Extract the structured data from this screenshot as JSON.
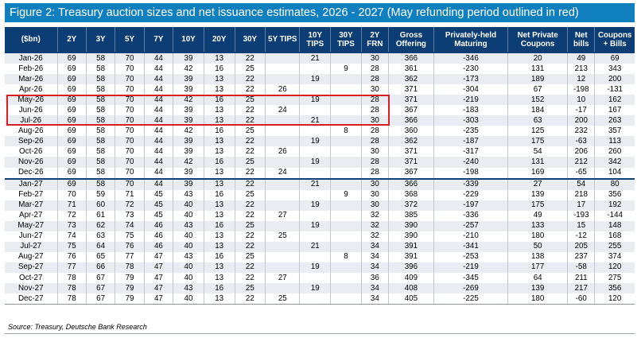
{
  "figure": {
    "title": "Figure 2: Treasury auction sizes and net issuance estimates, 2026 - 2027 (May refunding period outlined in red)",
    "source": "Source: Treasury, Deutsche Bank Research",
    "title_bg_color": "#0f7fbf",
    "header_bg_color": "#0c3d74",
    "highlight_color": "#d61f26"
  },
  "table": {
    "columns": [
      "($bn)",
      "2Y",
      "3Y",
      "5Y",
      "7Y",
      "10Y",
      "20Y",
      "30Y",
      "5Y TIPS",
      "10Y TIPS",
      "30Y TIPS",
      "2Y FRN",
      "Gross Offering",
      "Privately-held Maturing",
      "Net Private Coupons",
      "Net bills",
      "Coupons + Bills"
    ],
    "highlighted_rows": [
      "May-26",
      "Jun-26",
      "Jul-26"
    ],
    "year_start_rows": [
      "Jan-26",
      "Jan-27"
    ],
    "rows": [
      [
        "Jan-26",
        "69",
        "58",
        "70",
        "44",
        "39",
        "13",
        "22",
        "",
        "21",
        "",
        "30",
        "366",
        "-346",
        "20",
        "49",
        "69"
      ],
      [
        "Feb-26",
        "69",
        "58",
        "70",
        "44",
        "42",
        "16",
        "25",
        "",
        "",
        "9",
        "28",
        "361",
        "-230",
        "131",
        "213",
        "343"
      ],
      [
        "Mar-26",
        "69",
        "58",
        "70",
        "44",
        "39",
        "13",
        "22",
        "",
        "19",
        "",
        "28",
        "362",
        "-173",
        "189",
        "12",
        "200"
      ],
      [
        "Apr-26",
        "69",
        "58",
        "70",
        "44",
        "39",
        "13",
        "22",
        "26",
        "",
        "",
        "30",
        "371",
        "-304",
        "67",
        "-198",
        "-131"
      ],
      [
        "May-26",
        "69",
        "58",
        "70",
        "44",
        "42",
        "16",
        "25",
        "",
        "19",
        "",
        "28",
        "371",
        "-219",
        "152",
        "10",
        "162"
      ],
      [
        "Jun-26",
        "69",
        "58",
        "70",
        "44",
        "39",
        "13",
        "22",
        "24",
        "",
        "",
        "28",
        "367",
        "-183",
        "184",
        "-17",
        "167"
      ],
      [
        "Jul-26",
        "69",
        "58",
        "70",
        "44",
        "39",
        "13",
        "22",
        "",
        "21",
        "",
        "30",
        "366",
        "-303",
        "63",
        "200",
        "263"
      ],
      [
        "Aug-26",
        "69",
        "58",
        "70",
        "44",
        "42",
        "16",
        "25",
        "",
        "",
        "8",
        "28",
        "360",
        "-235",
        "125",
        "232",
        "357"
      ],
      [
        "Sep-26",
        "69",
        "58",
        "70",
        "44",
        "39",
        "13",
        "22",
        "",
        "19",
        "",
        "28",
        "362",
        "-187",
        "175",
        "-63",
        "113"
      ],
      [
        "Oct-26",
        "69",
        "58",
        "70",
        "44",
        "39",
        "13",
        "22",
        "26",
        "",
        "",
        "30",
        "371",
        "-317",
        "54",
        "206",
        "260"
      ],
      [
        "Nov-26",
        "69",
        "58",
        "70",
        "44",
        "42",
        "16",
        "25",
        "",
        "19",
        "",
        "28",
        "371",
        "-240",
        "131",
        "212",
        "342"
      ],
      [
        "Dec-26",
        "69",
        "58",
        "70",
        "44",
        "39",
        "13",
        "22",
        "24",
        "",
        "",
        "28",
        "367",
        "-198",
        "169",
        "-65",
        "104"
      ],
      [
        "Jan-27",
        "69",
        "58",
        "70",
        "44",
        "39",
        "13",
        "22",
        "",
        "21",
        "",
        "30",
        "366",
        "-339",
        "27",
        "54",
        "80"
      ],
      [
        "Feb-27",
        "70",
        "59",
        "71",
        "45",
        "43",
        "16",
        "25",
        "",
        "",
        "9",
        "30",
        "368",
        "-229",
        "139",
        "218",
        "356"
      ],
      [
        "Mar-27",
        "71",
        "60",
        "72",
        "45",
        "40",
        "13",
        "22",
        "",
        "19",
        "",
        "30",
        "372",
        "-197",
        "175",
        "17",
        "192"
      ],
      [
        "Apr-27",
        "72",
        "61",
        "73",
        "45",
        "40",
        "13",
        "22",
        "27",
        "",
        "",
        "32",
        "385",
        "-336",
        "49",
        "-193",
        "-144"
      ],
      [
        "May-27",
        "73",
        "62",
        "74",
        "46",
        "43",
        "16",
        "25",
        "",
        "19",
        "",
        "32",
        "390",
        "-257",
        "133",
        "15",
        "148"
      ],
      [
        "Jun-27",
        "74",
        "63",
        "75",
        "46",
        "40",
        "13",
        "22",
        "25",
        "",
        "",
        "32",
        "390",
        "-210",
        "180",
        "-12",
        "168"
      ],
      [
        "Jul-27",
        "75",
        "64",
        "76",
        "46",
        "40",
        "13",
        "22",
        "",
        "21",
        "",
        "34",
        "391",
        "-341",
        "50",
        "205",
        "255"
      ],
      [
        "Aug-27",
        "76",
        "65",
        "77",
        "47",
        "43",
        "16",
        "25",
        "",
        "",
        "8",
        "34",
        "391",
        "-253",
        "138",
        "237",
        "374"
      ],
      [
        "Sep-27",
        "77",
        "66",
        "78",
        "47",
        "40",
        "13",
        "22",
        "",
        "19",
        "",
        "34",
        "396",
        "-219",
        "177",
        "-58",
        "120"
      ],
      [
        "Oct-27",
        "78",
        "67",
        "79",
        "47",
        "40",
        "13",
        "22",
        "27",
        "",
        "",
        "36",
        "409",
        "-345",
        "64",
        "211",
        "275"
      ],
      [
        "Nov-27",
        "78",
        "67",
        "79",
        "47",
        "43",
        "16",
        "25",
        "",
        "19",
        "",
        "34",
        "408",
        "-269",
        "139",
        "217",
        "356"
      ],
      [
        "Dec-27",
        "78",
        "67",
        "79",
        "47",
        "40",
        "13",
        "22",
        "25",
        "",
        "",
        "34",
        "405",
        "-225",
        "180",
        "-60",
        "120"
      ]
    ]
  }
}
